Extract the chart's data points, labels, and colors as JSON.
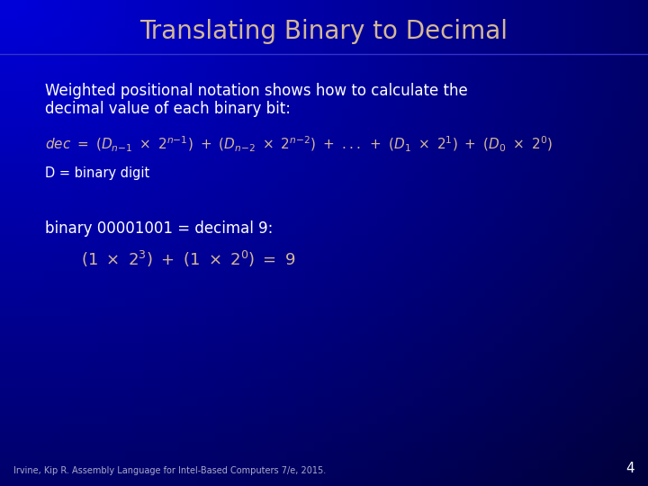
{
  "title": "Translating Binary to Decimal",
  "title_color": "#D4B896",
  "title_fontsize": 20,
  "text_color": "#FFFFFF",
  "accent_color": "#D4B896",
  "footer_text": "Irvine, Kip R. Assembly Language for Intel-Based Computers 7/e, 2015.",
  "footer_color": "#AAAACC",
  "page_number": "4",
  "subtitle_line1": "Weighted positional notation shows how to calculate the",
  "subtitle_line2": "decimal value of each binary bit:",
  "formula_note": "D = binary digit",
  "example_header": "binary 00001001 = decimal 9:"
}
